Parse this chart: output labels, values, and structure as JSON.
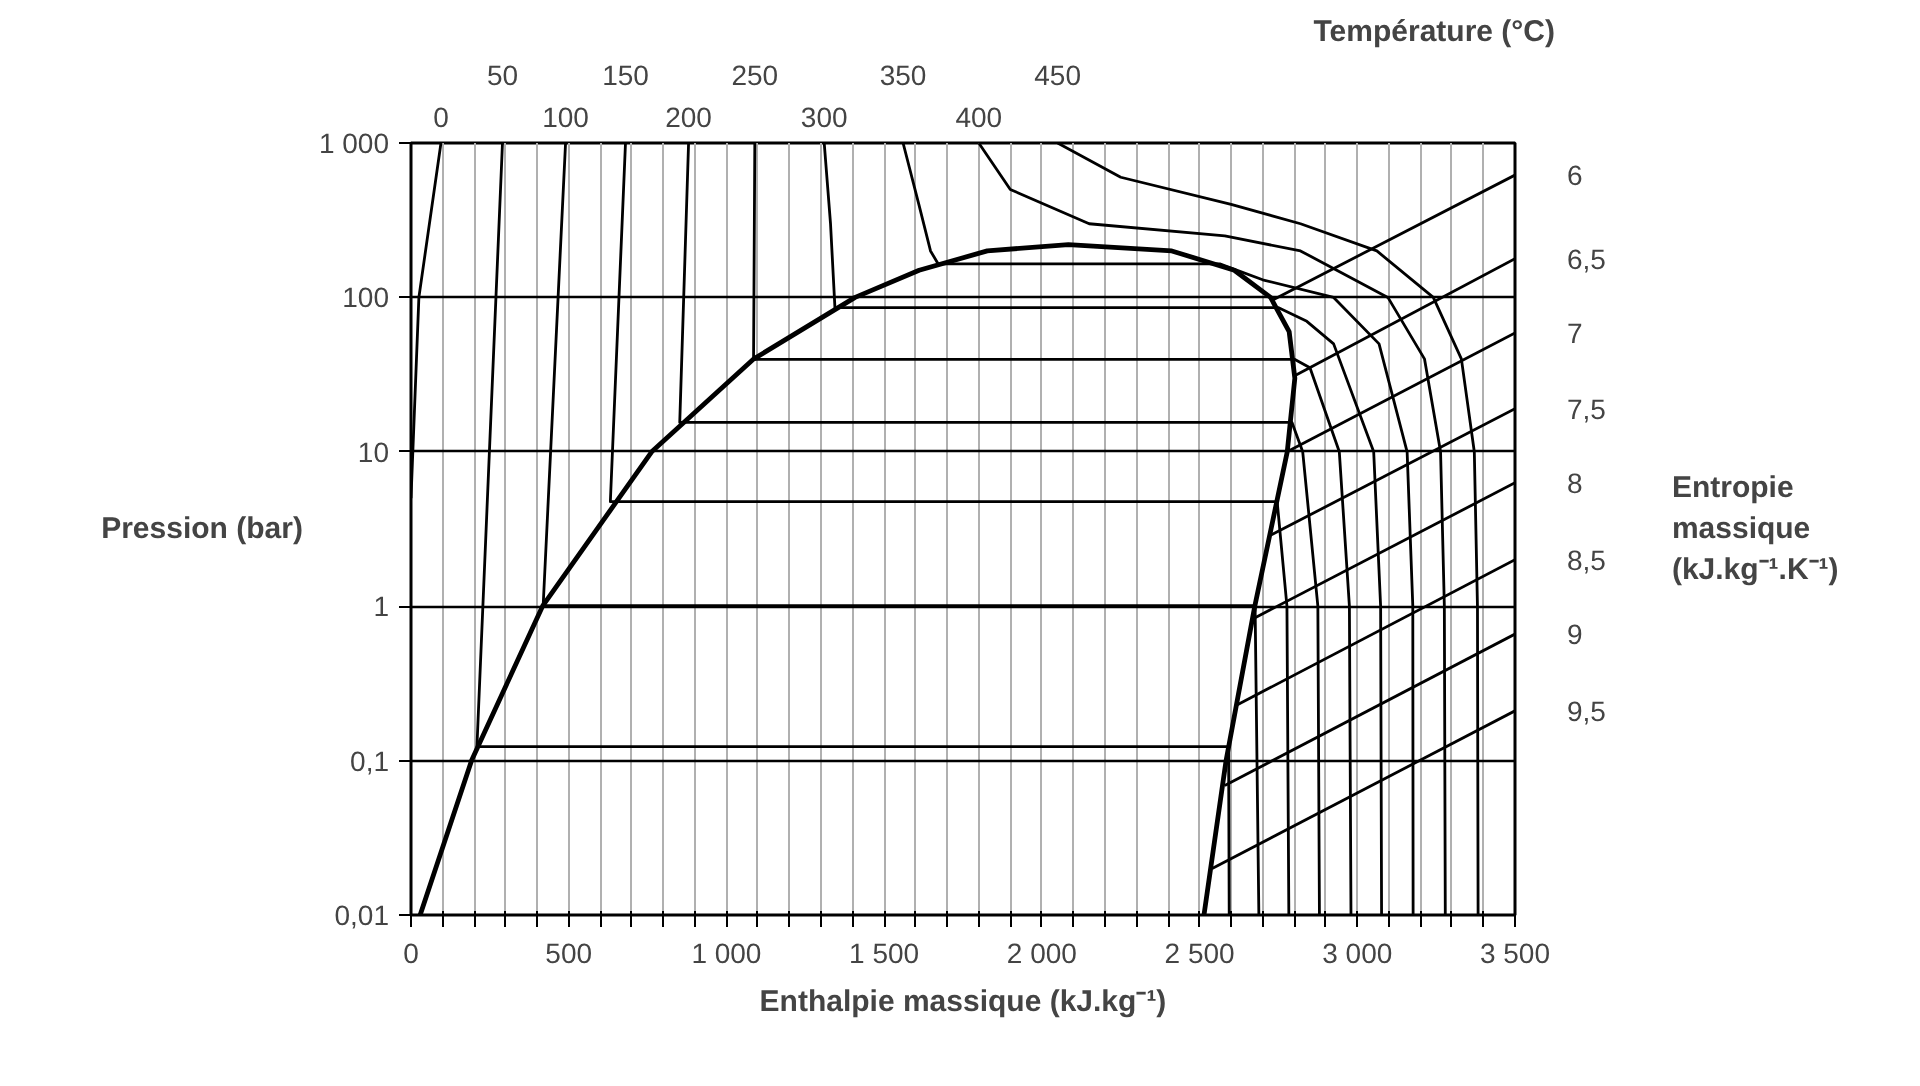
{
  "chart_data": {
    "type": "line",
    "xlabel": "Enthalpie massique (kJ.kg⁻¹)",
    "ylabel": "Pression (bar)",
    "log": true,
    "grid": true,
    "xlim": [
      0,
      3500
    ],
    "ylim": [
      0.01,
      1000
    ],
    "xticks": [
      0,
      {
        "value": 100,
        "label": null
      },
      {
        "value": 200,
        "label": null
      },
      {
        "value": 300,
        "label": null
      },
      {
        "value": 400,
        "label": null
      },
      500,
      {
        "value": 600,
        "label": null
      },
      {
        "value": 700,
        "label": null
      },
      {
        "value": 800,
        "label": null
      },
      {
        "value": 900,
        "label": null
      },
      {
        "value": 1000,
        "label": "1 000"
      },
      {
        "value": 1100,
        "label": null
      },
      {
        "value": 1200,
        "label": null
      },
      {
        "value": 1300,
        "label": null
      },
      {
        "value": 1400,
        "label": null
      },
      {
        "value": 1500,
        "label": "1 500"
      },
      {
        "value": 1600,
        "label": null
      },
      {
        "value": 1700,
        "label": null
      },
      {
        "value": 1800,
        "label": null
      },
      {
        "value": 1900,
        "label": null
      },
      {
        "value": 2000,
        "label": "2 000"
      },
      {
        "value": 2100,
        "label": null
      },
      {
        "value": 2200,
        "label": null
      },
      {
        "value": 2300,
        "label": null
      },
      {
        "value": 2400,
        "label": null
      },
      {
        "value": 2500,
        "label": "2 500"
      },
      {
        "value": 2600,
        "label": null
      },
      {
        "value": 2700,
        "label": null
      },
      {
        "value": 2800,
        "label": null
      },
      {
        "value": 2900,
        "label": null
      },
      {
        "value": 3000,
        "label": "3 000"
      },
      {
        "value": 3100,
        "label": null
      },
      {
        "value": 3200,
        "label": null
      },
      {
        "value": 3300,
        "label": null
      },
      {
        "value": 3400,
        "label": null
      },
      {
        "value": 3500,
        "label": "3 500"
      }
    ],
    "yticks": [
      {
        "value": 0.01,
        "label": "0,01"
      },
      {
        "value": 0.1,
        "label": "0,1"
      },
      1,
      10,
      100,
      {
        "value": 1000,
        "label": "1 000"
      }
    ],
    "annotations": [
      "Température (°C)",
      "Entropie massique (kJ.kg⁻¹.K⁻¹)"
    ],
    "series": [
      {
        "color": "#000000",
        "x": [
          29,
          192,
          417,
          763,
          1087,
          1408,
          1611,
          1827,
          2084,
          2412,
          2610,
          2725,
          2784,
          2802,
          2778,
          2675,
          2584,
          2514
        ],
        "values": [
          0.01,
          0.1,
          1,
          10,
          40,
          100,
          150,
          200,
          220,
          200,
          150,
          100,
          60,
          30,
          10,
          1,
          0.1,
          0.01
        ]
      },
      {
        "name": "0",
        "color": "#000000",
        "x": [
          95,
          25,
          0
        ],
        "values": [
          1000,
          100,
          5
        ]
      },
      {
        "name": "50",
        "color": "#000000",
        "x": [
          290,
          209,
          2592,
          2594
        ],
        "values": [
          1000,
          0.123,
          0.123,
          0.01
        ]
      },
      {
        "name": "100",
        "color": "#000000",
        "x": [
          490,
          419,
          2676,
          2688
        ],
        "values": [
          1000,
          1.01,
          1.01,
          0.01
        ]
      },
      {
        "name": "150",
        "color": "#000000",
        "x": [
          680,
          632,
          2746,
          2777,
          2783
        ],
        "values": [
          1000,
          4.76,
          4.76,
          1,
          0.01
        ]
      },
      {
        "name": "200",
        "color": "#000000",
        "x": [
          880,
          852,
          2793,
          2827,
          2875,
          2880
        ],
        "values": [
          1000,
          15.5,
          15.5,
          10,
          1,
          0.01
        ]
      },
      {
        "name": "250",
        "color": "#000000",
        "x": [
          1090,
          1086,
          2801,
          2850,
          2943,
          2975,
          2980
        ],
        "values": [
          1000,
          39.7,
          39.7,
          35,
          10,
          1,
          0.01
        ]
      },
      {
        "name": "300",
        "color": "#000000",
        "x": [
          1310,
          1330,
          1344,
          2749,
          2840,
          2925,
          3052,
          3074,
          3077
        ],
        "values": [
          1000,
          300,
          85.9,
          85.9,
          70,
          50,
          10,
          1,
          0.01
        ]
      },
      {
        "name": "350",
        "color": "#000000",
        "x": [
          1560,
          1610,
          1647,
          1671,
          2564,
          2700,
          2925,
          3069,
          3158,
          3176,
          3177
        ],
        "values": [
          1000,
          400,
          200,
          165,
          165,
          130,
          100,
          50,
          10,
          1,
          0.01
        ]
      },
      {
        "name": "400",
        "color": "#000000",
        "x": [
          1800,
          1900,
          2150,
          2580,
          2820,
          3097,
          3213,
          3264,
          3276,
          3279
        ],
        "values": [
          1000,
          500,
          300,
          250,
          200,
          100,
          40,
          10,
          1,
          0.01
        ]
      },
      {
        "name": "450",
        "color": "#000000",
        "x": [
          2050,
          2250,
          2600,
          2820,
          3062,
          3241,
          3330,
          3371,
          3381,
          3383
        ],
        "values": [
          1000,
          600,
          400,
          300,
          200,
          100,
          40,
          10,
          1,
          0.01
        ]
      },
      {
        "name": "6",
        "color": "#000000",
        "x": [
          2735,
          3500
        ],
        "values": [
          97,
          620
        ]
      },
      {
        "name": "6,5",
        "color": "#000000",
        "x": [
          2800,
          3500
        ],
        "values": [
          31,
          178
        ]
      },
      {
        "name": "7",
        "color": "#000000",
        "x": [
          2785,
          3500
        ],
        "values": [
          10.2,
          58.9
        ]
      },
      {
        "name": "7,5",
        "color": "#000000",
        "x": [
          2728,
          3500
        ],
        "values": [
          2.9,
          19
        ]
      },
      {
        "name": "8",
        "color": "#000000",
        "x": [
          2670,
          3500
        ],
        "values": [
          0.83,
          6.3
        ]
      },
      {
        "name": "8,5",
        "color": "#000000",
        "x": [
          2620,
          3500
        ],
        "values": [
          0.23,
          2
        ]
      },
      {
        "name": "9",
        "color": "#000000",
        "x": [
          2580,
          3500
        ],
        "values": [
          0.069,
          0.66
        ]
      },
      {
        "name": "9,5",
        "color": "#000000",
        "x": [
          2540,
          3500
        ],
        "values": [
          0.02,
          0.21
        ]
      }
    ]
  }
}
